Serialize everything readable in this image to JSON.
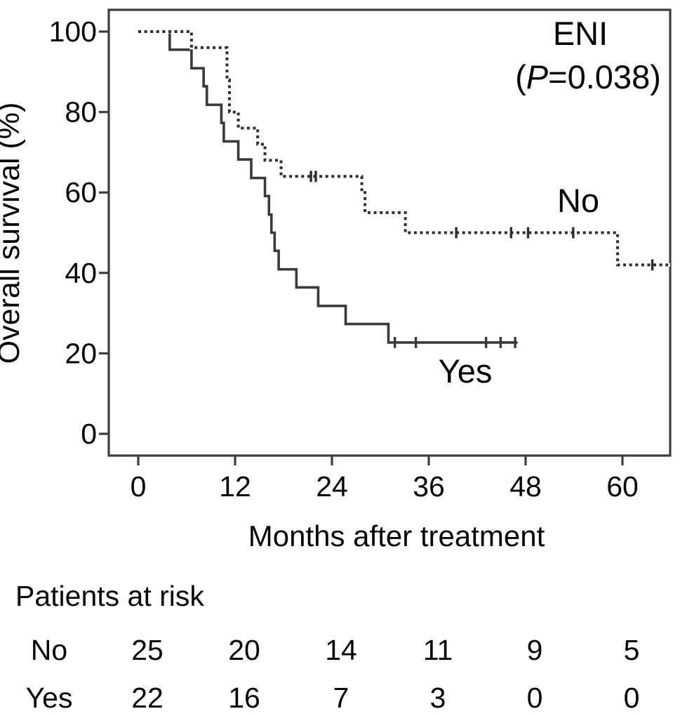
{
  "chart_data": {
    "type": "line",
    "subtype": "kaplan-meier-step-curves",
    "title": "ENI (P=0.038)",
    "xlabel": "Months after treatment",
    "ylabel": "Overall survival (%)",
    "xlim": [
      0,
      66
    ],
    "ylim": [
      0,
      100
    ],
    "xticks": [
      0,
      12,
      24,
      36,
      48,
      60
    ],
    "yticks": [
      0,
      20,
      40,
      60,
      80,
      100
    ],
    "grid": false,
    "legend_position": "labels-on-curves",
    "annotation": {
      "title": "ENI",
      "p_open": "(",
      "p_symbol": "P",
      "p_rest": "=0.038)"
    },
    "series": [
      {
        "name": "No",
        "line_style": "dotted",
        "color": "#2e2e2e",
        "steps": [
          [
            0,
            100
          ],
          [
            6.6,
            96
          ],
          [
            11.0,
            88
          ],
          [
            11.3,
            80
          ],
          [
            12.4,
            76
          ],
          [
            14.8,
            72
          ],
          [
            15.7,
            68
          ],
          [
            17.7,
            64
          ],
          [
            27.7,
            60
          ],
          [
            28.1,
            55
          ],
          [
            33.1,
            50
          ],
          [
            59.4,
            42
          ]
        ],
        "end_time": 65.9,
        "censors": [
          [
            21.4,
            64
          ],
          [
            22.0,
            64
          ],
          [
            39.4,
            50
          ],
          [
            46.2,
            50
          ],
          [
            48.3,
            50
          ],
          [
            53.9,
            50
          ],
          [
            63.7,
            42
          ]
        ]
      },
      {
        "name": "Yes",
        "line_style": "solid",
        "color": "#3a3a3a",
        "steps": [
          [
            0,
            100
          ],
          [
            3.9,
            95.5
          ],
          [
            6.6,
            90.9
          ],
          [
            8.1,
            86.4
          ],
          [
            8.5,
            81.8
          ],
          [
            10.3,
            77.3
          ],
          [
            10.6,
            72.7
          ],
          [
            12.4,
            68.2
          ],
          [
            14.0,
            63.6
          ],
          [
            15.7,
            59.1
          ],
          [
            16.2,
            54.5
          ],
          [
            16.5,
            50.0
          ],
          [
            16.9,
            45.5
          ],
          [
            17.4,
            40.9
          ],
          [
            19.6,
            36.4
          ],
          [
            22.3,
            31.8
          ],
          [
            25.7,
            27.3
          ],
          [
            31.0,
            22.7
          ]
        ],
        "end_time": 47.0,
        "censors": [
          [
            31.8,
            22.7
          ],
          [
            34.4,
            22.7
          ],
          [
            43.1,
            22.7
          ],
          [
            44.9,
            22.7
          ],
          [
            46.7,
            22.7
          ]
        ]
      }
    ]
  },
  "risk_table": {
    "title": "Patients at risk",
    "columns_months": [
      0,
      12,
      24,
      36,
      48,
      60
    ],
    "rows": [
      {
        "label": "No",
        "values": [
          "25",
          "20",
          "14",
          "11",
          "9",
          "5"
        ]
      },
      {
        "label": "Yes",
        "values": [
          "22",
          "16",
          "7",
          "3",
          "0",
          "0"
        ]
      }
    ]
  }
}
